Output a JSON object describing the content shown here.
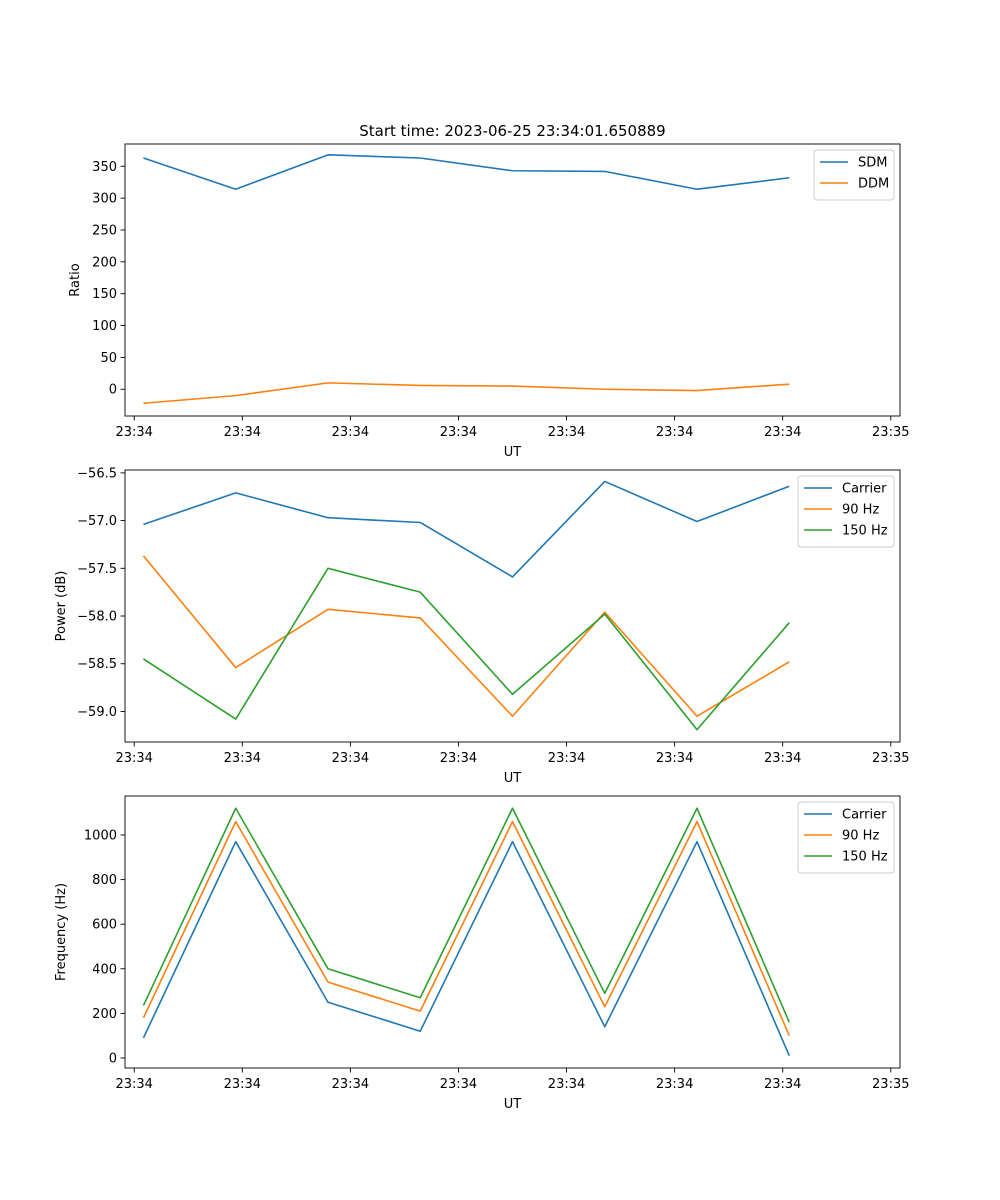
{
  "figure": {
    "title": "Start time: 2023-06-25 23:34:01.650889"
  },
  "chart_data": [
    {
      "type": "line",
      "xlabel": "UT",
      "ylabel": "Ratio",
      "x_tick_labels": [
        "23:34",
        "23:34",
        "23:34",
        "23:34",
        "23:34",
        "23:34",
        "23:34"
      ],
      "x_tick_end_label": "23:35",
      "x": [
        1,
        2,
        3,
        4,
        5,
        6,
        7,
        8
      ],
      "xlim": [
        0.8,
        9.2
      ],
      "ylim": [
        -42,
        385
      ],
      "yticks": [
        0,
        50,
        100,
        150,
        200,
        250,
        300,
        350
      ],
      "ytick_labels": [
        "0",
        "50",
        "100",
        "150",
        "200",
        "250",
        "300",
        "350"
      ],
      "legend": "upper right",
      "series": [
        {
          "name": "SDM",
          "color": "#1f77b4",
          "values": [
            363,
            314,
            368,
            363,
            343,
            342,
            314,
            332
          ]
        },
        {
          "name": "DDM",
          "color": "#ff7f0e",
          "values": [
            -22,
            -10,
            10,
            6,
            5,
            0,
            -2,
            8
          ]
        }
      ]
    },
    {
      "type": "line",
      "xlabel": "UT",
      "ylabel": "Power (dB)",
      "x_tick_labels": [
        "23:34",
        "23:34",
        "23:34",
        "23:34",
        "23:34",
        "23:34",
        "23:34"
      ],
      "x_tick_end_label": "23:35",
      "x": [
        1,
        2,
        3,
        4,
        5,
        6,
        7,
        8
      ],
      "xlim": [
        0.8,
        9.2
      ],
      "ylim": [
        -59.32,
        -56.47
      ],
      "yticks": [
        -59.0,
        -58.5,
        -58.0,
        -57.5,
        -57.0,
        -56.5
      ],
      "ytick_labels": [
        "−59.0",
        "−58.5",
        "−58.0",
        "−57.5",
        "−57.0",
        "−56.5"
      ],
      "legend": "upper right",
      "series": [
        {
          "name": "Carrier",
          "color": "#1f77b4",
          "values": [
            -57.04,
            -56.71,
            -56.97,
            -57.02,
            -57.59,
            -56.59,
            -57.01,
            -56.64
          ]
        },
        {
          "name": "90 Hz",
          "color": "#ff7f0e",
          "values": [
            -57.37,
            -58.54,
            -57.93,
            -58.02,
            -59.05,
            -57.96,
            -59.05,
            -58.48
          ]
        },
        {
          "name": "150 Hz",
          "color": "#2ca02c",
          "values": [
            -58.45,
            -59.08,
            -57.5,
            -57.75,
            -58.82,
            -57.98,
            -59.19,
            -58.07
          ]
        }
      ]
    },
    {
      "type": "line",
      "xlabel": "UT",
      "ylabel": "Frequency (Hz)",
      "x_tick_labels": [
        "23:34",
        "23:34",
        "23:34",
        "23:34",
        "23:34",
        "23:34",
        "23:34"
      ],
      "x_tick_end_label": "23:35",
      "x": [
        1,
        2,
        3,
        4,
        5,
        6,
        7,
        8
      ],
      "xlim": [
        0.8,
        9.2
      ],
      "ylim": [
        -45,
        1175
      ],
      "yticks": [
        0,
        200,
        400,
        600,
        800,
        1000
      ],
      "ytick_labels": [
        "0",
        "200",
        "400",
        "600",
        "800",
        "1000"
      ],
      "legend": "upper right",
      "series": [
        {
          "name": "Carrier",
          "color": "#1f77b4",
          "values": [
            90,
            970,
            250,
            120,
            970,
            140,
            970,
            10
          ]
        },
        {
          "name": "90 Hz",
          "color": "#ff7f0e",
          "values": [
            180,
            1060,
            340,
            210,
            1060,
            230,
            1060,
            100
          ]
        },
        {
          "name": "150 Hz",
          "color": "#2ca02c",
          "values": [
            235,
            1120,
            400,
            270,
            1120,
            290,
            1120,
            160
          ]
        }
      ]
    }
  ]
}
